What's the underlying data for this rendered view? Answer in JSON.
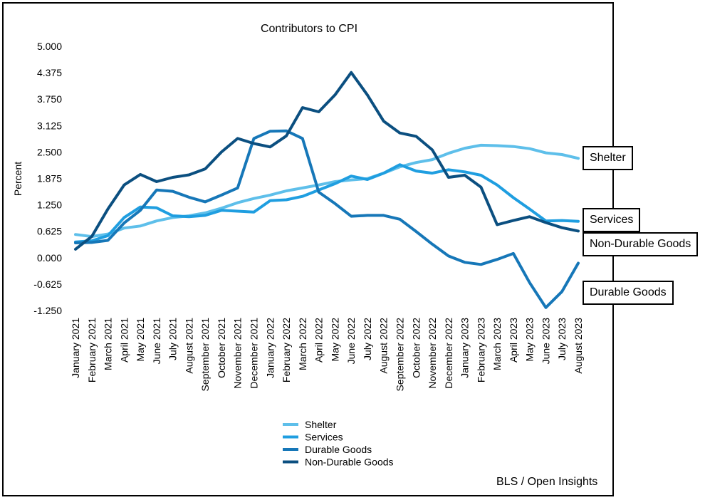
{
  "source": "BLS / Open Insights",
  "callouts": {
    "shelter": "Shelter",
    "services": "Services",
    "non_durable": "Non-Durable Goods",
    "durable": "Durable Goods"
  },
  "chart_data": {
    "type": "line",
    "title": "Contributors to CPI",
    "xlabel": "",
    "ylabel": "Percent",
    "ylim": [
      -1.25,
      5.0
    ],
    "y_ticks": [
      "5.000",
      "4.375",
      "3.750",
      "3.125",
      "2.500",
      "1.875",
      "1.250",
      "0.625",
      "0.000",
      "-0.625",
      "-1.250"
    ],
    "grid": false,
    "legend_position": "bottom-center",
    "categories": [
      "January 2021",
      "February 2021",
      "March 2021",
      "April 2021",
      "May 2021",
      "June 2021",
      "July 2021",
      "August 2021",
      "September 2021",
      "October 2021",
      "November 2021",
      "December 2021",
      "January 2022",
      "February 2022",
      "March 2022",
      "April 2022",
      "May 2022",
      "June 2022",
      "July 2022",
      "August 2022",
      "September 2022",
      "October 2022",
      "November 2022",
      "December 2022",
      "January 2023",
      "February 2023",
      "March 2023",
      "April 2023",
      "May 2023",
      "June 2023",
      "July 2023",
      "August 2023"
    ],
    "series": [
      {
        "name": "Shelter",
        "color": "#5ebfea",
        "values": [
          0.55,
          0.5,
          0.56,
          0.7,
          0.75,
          0.87,
          0.95,
          0.99,
          1.06,
          1.17,
          1.3,
          1.4,
          1.48,
          1.58,
          1.65,
          1.72,
          1.8,
          1.84,
          1.87,
          2.0,
          2.15,
          2.25,
          2.32,
          2.47,
          2.59,
          2.66,
          2.65,
          2.63,
          2.58,
          2.48,
          2.44,
          2.35
        ]
      },
      {
        "name": "Services",
        "color": "#1f9ee0",
        "values": [
          0.37,
          0.4,
          0.52,
          0.95,
          1.2,
          1.18,
          0.99,
          0.97,
          1.0,
          1.12,
          1.1,
          1.08,
          1.35,
          1.37,
          1.45,
          1.6,
          1.75,
          1.93,
          1.85,
          2.0,
          2.2,
          2.05,
          2.0,
          2.08,
          2.03,
          1.95,
          1.72,
          1.42,
          1.15,
          0.87,
          0.88,
          0.86
        ]
      },
      {
        "name": "Durable Goods",
        "color": "#1677b8",
        "values": [
          0.35,
          0.36,
          0.41,
          0.82,
          1.12,
          1.6,
          1.57,
          1.43,
          1.32,
          1.48,
          1.65,
          2.82,
          2.99,
          3.0,
          2.82,
          1.55,
          1.28,
          0.98,
          1.0,
          1.0,
          0.91,
          0.62,
          0.32,
          0.04,
          -0.11,
          -0.16,
          -0.04,
          0.1,
          -0.59,
          -1.18,
          -0.8,
          -0.13
        ]
      },
      {
        "name": "Non-Durable Goods",
        "color": "#0b4f80",
        "values": [
          0.2,
          0.5,
          1.15,
          1.72,
          1.97,
          1.8,
          1.9,
          1.96,
          2.1,
          2.5,
          2.82,
          2.7,
          2.62,
          2.88,
          3.55,
          3.45,
          3.85,
          4.38,
          3.85,
          3.23,
          2.95,
          2.87,
          2.55,
          1.9,
          1.95,
          1.67,
          0.78,
          0.88,
          0.97,
          0.83,
          0.71,
          0.63
        ]
      }
    ]
  }
}
